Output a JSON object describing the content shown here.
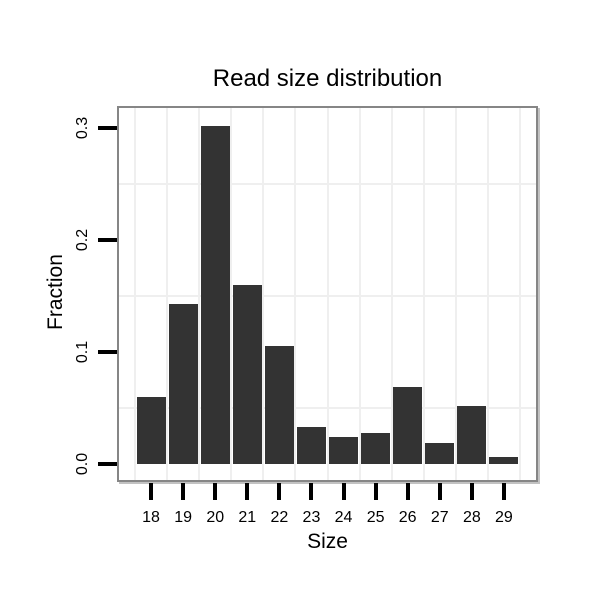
{
  "chart_data": {
    "type": "bar",
    "title": "Read size distribution",
    "xlabel": "Size",
    "ylabel": "Fraction",
    "categories": [
      "18",
      "19",
      "20",
      "21",
      "22",
      "23",
      "24",
      "25",
      "26",
      "27",
      "28",
      "29"
    ],
    "values": [
      0.06,
      0.143,
      0.302,
      0.16,
      0.105,
      0.033,
      0.024,
      0.028,
      0.069,
      0.019,
      0.052,
      0.006
    ],
    "ylim": [
      -0.015,
      0.319
    ],
    "yticks": [
      0.0,
      0.1,
      0.2,
      0.3
    ],
    "ytick_labels": [
      "0.0",
      "0.1",
      "0.2",
      "0.3"
    ],
    "grid": {
      "h_lines": [
        0.05,
        0.15,
        0.25
      ],
      "v_boundaries": "between-categories",
      "on": true
    },
    "legend": "none",
    "colors": {
      "bar": "#333333",
      "grid": "#efefef",
      "frame": "#868686",
      "shadow": "#c2c2c2",
      "tick": "#000000",
      "text": "#000000",
      "background": "#ffffff",
      "panel_bg": "#ffffff"
    }
  }
}
